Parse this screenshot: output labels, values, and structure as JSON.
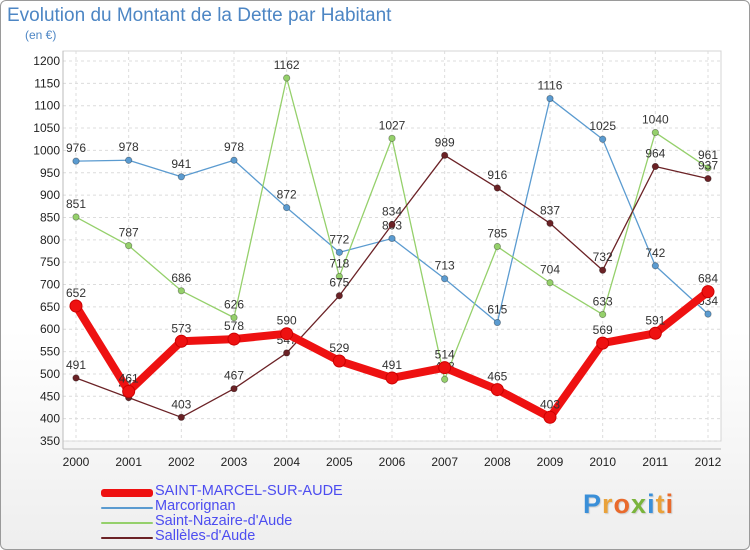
{
  "title": "Evolution du Montant de la Dette par Habitant",
  "subtitle": "(en €)",
  "logo": {
    "text": "Proxiti",
    "colors": [
      "#3a8fd8",
      "#e9a23b",
      "#e96a2c",
      "#7ab43c",
      "#3a8fd8",
      "#e9a23b",
      "#e96a2c"
    ]
  },
  "chart_data": {
    "type": "line",
    "x": [
      "2000",
      "2001",
      "2002",
      "2003",
      "2004",
      "2005",
      "2006",
      "2007",
      "2008",
      "2009",
      "2010",
      "2011",
      "2012"
    ],
    "ylim": [
      350,
      1200
    ],
    "yticks": [
      350,
      400,
      450,
      500,
      550,
      600,
      650,
      700,
      750,
      800,
      850,
      900,
      950,
      1000,
      1050,
      1100,
      1150,
      1200
    ],
    "grid": true,
    "legend_position": "bottom-left",
    "series": [
      {
        "name": "Marcorignan",
        "color": "#5b9bd0",
        "values": [
          976,
          978,
          941,
          978,
          872,
          772,
          803,
          713,
          615,
          1116,
          1025,
          742,
          634
        ]
      },
      {
        "name": "Saint-Nazaire-d'Aude",
        "color": "#95d06b",
        "values": [
          851,
          787,
          686,
          626,
          1162,
          718,
          1027,
          488,
          785,
          704,
          633,
          1040,
          961
        ]
      },
      {
        "name": "Sallèles-d'Aude",
        "color": "#6b2226",
        "values": [
          491,
          447,
          403,
          467,
          547,
          675,
          834,
          989,
          916,
          837,
          732,
          964,
          937
        ]
      },
      {
        "name": "SAINT-MARCEL-SUR-AUDE",
        "color": "#ee1111",
        "values": [
          652,
          461,
          573,
          578,
          590,
          529,
          491,
          514,
          465,
          403,
          569,
          591,
          684
        ]
      }
    ]
  }
}
